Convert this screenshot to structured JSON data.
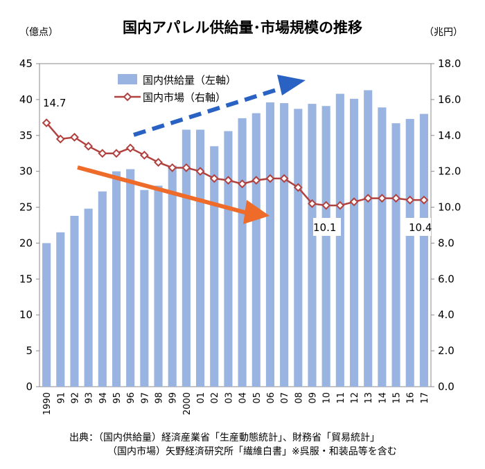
{
  "chart_data": {
    "type": "bar+line",
    "title": "国内アパレル供給量･市場規模の推移",
    "left_axis_unit": "（億点）",
    "right_axis_unit": "（兆円）",
    "categories": [
      "1990",
      "91",
      "92",
      "93",
      "94",
      "95",
      "96",
      "97",
      "98",
      "99",
      "2000",
      "01",
      "02",
      "03",
      "04",
      "05",
      "06",
      "07",
      "08",
      "09",
      "10",
      "11",
      "12",
      "13",
      "14",
      "15",
      "16",
      "17"
    ],
    "left_ylim": [
      0,
      45
    ],
    "left_yticks": [
      "0",
      "5",
      "10",
      "15",
      "20",
      "25",
      "30",
      "35",
      "40",
      "45"
    ],
    "right_ylim": [
      0,
      18
    ],
    "right_yticks": [
      "0.0",
      "2.0",
      "4.0",
      "6.0",
      "8.0",
      "10.0",
      "12.0",
      "14.0",
      "16.0",
      "18.0"
    ],
    "series": [
      {
        "name": "国内供給量（左軸）",
        "type": "bar",
        "axis": "left",
        "color": "#99b4e0",
        "values": [
          20.0,
          21.5,
          23.8,
          24.8,
          27.2,
          30.0,
          30.3,
          27.4,
          28.0,
          30.8,
          35.8,
          35.8,
          33.5,
          35.6,
          37.4,
          38.1,
          39.6,
          39.5,
          38.7,
          39.4,
          39.1,
          40.8,
          40.1,
          41.3,
          38.9,
          36.7,
          37.3,
          38.0
        ]
      },
      {
        "name": "国内市場（右軸）",
        "type": "line",
        "axis": "right",
        "color": "#b0413e",
        "values": [
          14.7,
          13.8,
          13.9,
          13.4,
          13.0,
          13.0,
          13.3,
          12.9,
          12.5,
          12.2,
          12.2,
          12.0,
          11.6,
          11.5,
          11.3,
          11.5,
          11.6,
          11.6,
          11.1,
          10.2,
          10.1,
          10.1,
          10.3,
          10.5,
          10.5,
          10.5,
          10.4,
          10.4
        ]
      }
    ],
    "data_labels": [
      {
        "series": 1,
        "index": 0,
        "text": "14.7"
      },
      {
        "series": 1,
        "index": 20,
        "text": "10.1"
      },
      {
        "series": 1,
        "index": 27,
        "text": "10.4"
      }
    ],
    "annotations": [
      {
        "type": "arrow",
        "style": "dashed",
        "color": "#2a62c4",
        "meaning": "供給量の増加傾向"
      },
      {
        "type": "arrow",
        "style": "solid",
        "color": "#ee6b2a",
        "meaning": "市場規模の縮小傾向"
      }
    ],
    "legend_position": "top-center",
    "source_lines": [
      "出典：（国内供給量）経済産業省「生産動態統計」、財務省「貿易統計」",
      "（国内市場）矢野経済研究所「繊維白書」※呉服・和装品等を含む"
    ]
  }
}
